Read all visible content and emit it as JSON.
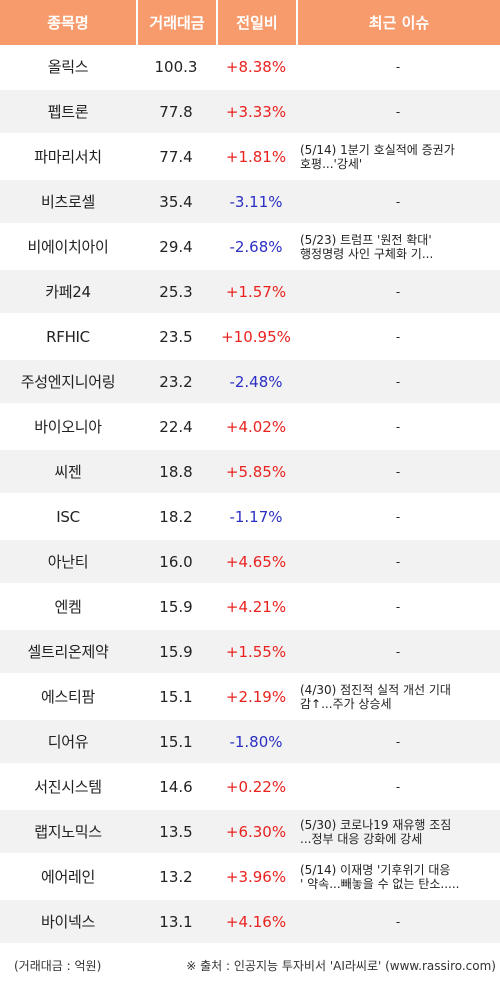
{
  "header": {
    "col_name": "종목명",
    "col_volume": "거래대금",
    "col_change": "전일비",
    "col_issue": "최근 이슈"
  },
  "rows": [
    {
      "name": "올릭스",
      "volume": "100.3",
      "change": "+8.38%",
      "dir": "up",
      "issue1": "-",
      "issue2": ""
    },
    {
      "name": "펩트론",
      "volume": "77.8",
      "change": "+3.33%",
      "dir": "up",
      "issue1": "-",
      "issue2": ""
    },
    {
      "name": "파마리서치",
      "volume": "77.4",
      "change": "+1.81%",
      "dir": "up",
      "issue1": "(5/14) 1분기 호실적에 증권가",
      "issue2": "호평...'강세'"
    },
    {
      "name": "비츠로셀",
      "volume": "35.4",
      "change": "-3.11%",
      "dir": "down",
      "issue1": "-",
      "issue2": ""
    },
    {
      "name": "비에이치아이",
      "volume": "29.4",
      "change": "-2.68%",
      "dir": "down",
      "issue1": "(5/23) 트럼프 '원전 확대'",
      "issue2": "행정명령 사인 구체화 기..."
    },
    {
      "name": "카페24",
      "volume": "25.3",
      "change": "+1.57%",
      "dir": "up",
      "issue1": "-",
      "issue2": ""
    },
    {
      "name": "RFHIC",
      "volume": "23.5",
      "change": "+10.95%",
      "dir": "up",
      "issue1": "-",
      "issue2": ""
    },
    {
      "name": "주성엔지니어링",
      "volume": "23.2",
      "change": "-2.48%",
      "dir": "down",
      "issue1": "-",
      "issue2": ""
    },
    {
      "name": "바이오니아",
      "volume": "22.4",
      "change": "+4.02%",
      "dir": "up",
      "issue1": "-",
      "issue2": ""
    },
    {
      "name": "씨젠",
      "volume": "18.8",
      "change": "+5.85%",
      "dir": "up",
      "issue1": "-",
      "issue2": ""
    },
    {
      "name": "ISC",
      "volume": "18.2",
      "change": "-1.17%",
      "dir": "down",
      "issue1": "-",
      "issue2": ""
    },
    {
      "name": "아난티",
      "volume": "16.0",
      "change": "+4.65%",
      "dir": "up",
      "issue1": "-",
      "issue2": ""
    },
    {
      "name": "엔켐",
      "volume": "15.9",
      "change": "+4.21%",
      "dir": "up",
      "issue1": "-",
      "issue2": ""
    },
    {
      "name": "셀트리온제약",
      "volume": "15.9",
      "change": "+1.55%",
      "dir": "up",
      "issue1": "-",
      "issue2": ""
    },
    {
      "name": "에스티팜",
      "volume": "15.1",
      "change": "+2.19%",
      "dir": "up",
      "issue1": "(4/30) 점진적 실적 개선 기대",
      "issue2": "감↑...주가 상승세"
    },
    {
      "name": "디어유",
      "volume": "15.1",
      "change": "-1.80%",
      "dir": "down",
      "issue1": "-",
      "issue2": ""
    },
    {
      "name": "서진시스템",
      "volume": "14.6",
      "change": "+0.22%",
      "dir": "up",
      "issue1": "-",
      "issue2": ""
    },
    {
      "name": "랩지노믹스",
      "volume": "13.5",
      "change": "+6.30%",
      "dir": "up",
      "issue1": "(5/30) 코로나19 재유행 조짐",
      "issue2": "...정부 대응 강화에 강세"
    },
    {
      "name": "에어레인",
      "volume": "13.2",
      "change": "+3.96%",
      "dir": "up",
      "issue1": "(5/14) 이재명 '기후위기 대응",
      "issue2": "' 약속...빼놓을 수 없는 탄소....."
    },
    {
      "name": "바이넥스",
      "volume": "13.1",
      "change": "+4.16%",
      "dir": "up",
      "issue1": "-",
      "issue2": ""
    }
  ],
  "footer": {
    "unit_note": "(거래대금 : 억원)",
    "source_note": "※ 출처 : 인공지능 투자비서 'AI라씨로' (www.rassiro.com)"
  },
  "colors": {
    "header_bg": "#f79b6c",
    "up": "#e8231f",
    "down": "#2b2fc4",
    "row_alt": "#f2f2f2"
  }
}
